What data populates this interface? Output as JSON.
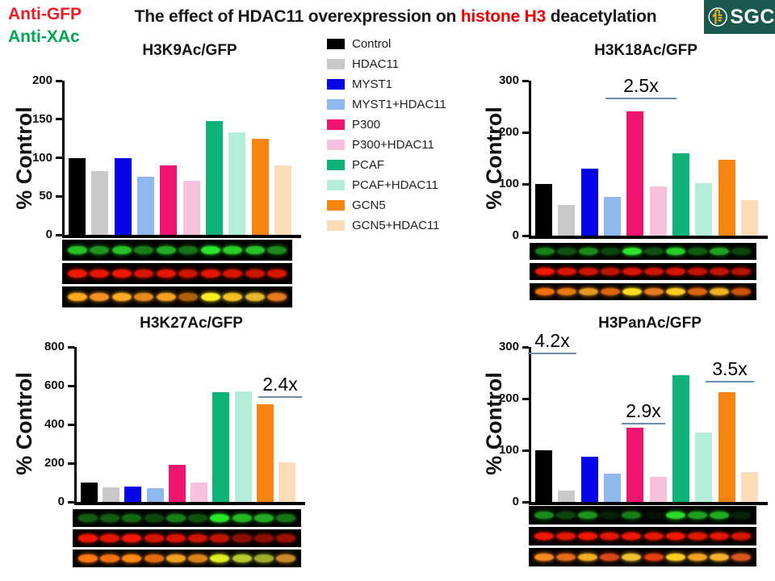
{
  "header": {
    "corner_labels": [
      {
        "text": "Anti-GFP",
        "color": "#ed1c24"
      },
      {
        "text": "Anti-XAc",
        "color": "#00a651"
      }
    ],
    "title": {
      "prefix": "The effect of HDAC11 overexpression on ",
      "highlight": "histone H3",
      "suffix": " deacetylation",
      "highlight_color": "#f00000"
    },
    "logo_text": "SGC"
  },
  "legend": {
    "entries": [
      {
        "label": "Control",
        "color": "#000000"
      },
      {
        "label": "HDAC11",
        "color": "#c9c9c9"
      },
      {
        "label": "MYST1",
        "color": "#0505e8"
      },
      {
        "label": "MYST1+HDAC11",
        "color": "#8fb8ef"
      },
      {
        "label": "P300",
        "color": "#ee1470"
      },
      {
        "label": "P300+HDAC11",
        "color": "#f9c2dc"
      },
      {
        "label": "PCAF",
        "color": "#0fb377"
      },
      {
        "label": "PCAF+HDAC11",
        "color": "#b4eeda"
      },
      {
        "label": "GCN5",
        "color": "#f8850f"
      },
      {
        "label": "GCN5+HDAC11",
        "color": "#fcdcb8"
      }
    ]
  },
  "chart_data": [
    {
      "type": "bar",
      "title": "H3K9Ac/GFP",
      "ylabel": "% Control",
      "ylim": [
        0,
        200
      ],
      "yticks": [
        0,
        50,
        100,
        150,
        200
      ],
      "categories": [
        "Control",
        "HDAC11",
        "MYST1",
        "MYST1+HDAC11",
        "P300",
        "P300+HDAC11",
        "PCAF",
        "PCAF+HDAC11",
        "GCN5",
        "GCN5+HDAC11"
      ],
      "values": [
        100,
        83,
        100,
        75,
        90,
        70,
        148,
        133,
        125,
        90
      ],
      "annotations": []
    },
    {
      "type": "bar",
      "title": "H3K18Ac/GFP",
      "ylabel": "% Control",
      "ylim": [
        0,
        300
      ],
      "yticks": [
        0,
        100,
        200,
        300
      ],
      "categories": [
        "Control",
        "HDAC11",
        "MYST1",
        "MYST1+HDAC11",
        "P300",
        "P300+HDAC11",
        "PCAF",
        "PCAF+HDAC11",
        "GCN5",
        "GCN5+HDAC11"
      ],
      "values": [
        100,
        60,
        130,
        75,
        240,
        95,
        160,
        102,
        147,
        68
      ],
      "annotations": [
        {
          "label": "2.5x",
          "bar": "P300"
        }
      ]
    },
    {
      "type": "bar",
      "title": "H3K27Ac/GFP",
      "ylabel": "% Control",
      "ylim": [
        0,
        800
      ],
      "yticks": [
        0,
        200,
        400,
        600,
        800
      ],
      "categories": [
        "Control",
        "HDAC11",
        "MYST1",
        "MYST1+HDAC11",
        "P300",
        "P300+HDAC11",
        "PCAF",
        "PCAF+HDAC11",
        "GCN5",
        "GCN5+HDAC11"
      ],
      "values": [
        100,
        75,
        80,
        70,
        190,
        100,
        565,
        570,
        505,
        205
      ],
      "annotations": [
        {
          "label": "2.4x",
          "bar": "GCN5"
        }
      ]
    },
    {
      "type": "bar",
      "title": "H3PanAc/GFP",
      "ylabel": "% Control",
      "ylim": [
        0,
        300
      ],
      "yticks": [
        0,
        100,
        200,
        300
      ],
      "categories": [
        "Control",
        "HDAC11",
        "MYST1",
        "MYST1+HDAC11",
        "P300",
        "P300+HDAC11",
        "PCAF",
        "PCAF+HDAC11",
        "GCN5",
        "GCN5+HDAC11"
      ],
      "values": [
        100,
        22,
        87,
        55,
        143,
        48,
        245,
        135,
        213,
        58
      ],
      "annotations": [
        {
          "label": "4.2x",
          "bar": "Control"
        },
        {
          "label": "2.9x",
          "bar": "P300"
        },
        {
          "label": "3.5x",
          "bar": "GCN5"
        }
      ]
    }
  ],
  "blots": [
    {
      "rows": [
        {
          "channel": "green",
          "color": "#2ce62c",
          "intensities": [
            0.85,
            0.65,
            0.85,
            0.55,
            0.75,
            0.5,
            1,
            0.9,
            0.85,
            0.6
          ]
        },
        {
          "channel": "red",
          "color": "#f01800",
          "intensities": [
            1,
            0.95,
            1,
            0.9,
            0.95,
            0.85,
            0.95,
            0.9,
            0.85,
            0.9
          ]
        },
        {
          "channel": "merge",
          "colors": [
            "#ffaa22",
            "#ff9922",
            "#ffaa22",
            "#ff9922",
            "#ffaa22",
            "#dd7711",
            "#ffee22",
            "#ffcc22",
            "#ffcc33",
            "#ff8822"
          ],
          "intensities": [
            1,
            0.95,
            1,
            0.9,
            0.95,
            0.8,
            1,
            0.95,
            0.9,
            0.9
          ]
        }
      ]
    },
    {
      "rows": [
        {
          "channel": "green",
          "color": "#2ce62c",
          "intensities": [
            0.55,
            0.35,
            0.6,
            0.3,
            1,
            0.35,
            0.9,
            0.4,
            0.7,
            0.3
          ]
        },
        {
          "channel": "red",
          "color": "#f01800",
          "intensities": [
            1,
            0.9,
            0.85,
            0.8,
            0.9,
            0.85,
            0.9,
            0.8,
            0.8,
            0.75
          ]
        },
        {
          "channel": "merge",
          "colors": [
            "#ff7711",
            "#ff8811",
            "#ffaa22",
            "#ff7711",
            "#ffdd22",
            "#ff8822",
            "#ffcc22",
            "#ff7711",
            "#ffbb22",
            "#ff6611"
          ],
          "intensities": [
            0.95,
            0.9,
            0.9,
            0.85,
            1,
            0.9,
            1,
            0.85,
            0.95,
            0.8
          ]
        }
      ]
    },
    {
      "rows": [
        {
          "channel": "green",
          "color": "#2ce62c",
          "intensities": [
            0.4,
            0.4,
            0.45,
            0.3,
            0.55,
            0.35,
            1,
            0.8,
            0.75,
            0.5
          ]
        },
        {
          "channel": "red",
          "color": "#f01800",
          "intensities": [
            1,
            0.95,
            1,
            0.9,
            0.9,
            0.85,
            0.8,
            0.6,
            0.6,
            0.65
          ]
        },
        {
          "channel": "merge",
          "colors": [
            "#ff7711",
            "#ff7711",
            "#ff8811",
            "#ff7711",
            "#ffaa22",
            "#ff9922",
            "#ddee22",
            "#ccdd33",
            "#bbcc33",
            "#ffaa33"
          ],
          "intensities": [
            1,
            0.95,
            1,
            0.9,
            0.95,
            0.85,
            1,
            0.9,
            0.85,
            0.8
          ]
        }
      ]
    },
    {
      "rows": [
        {
          "channel": "green",
          "color": "#2ce62c",
          "intensities": [
            0.6,
            0.3,
            0.65,
            0.15,
            0.55,
            0.08,
            0.95,
            0.7,
            0.75,
            0.15
          ]
        },
        {
          "channel": "red",
          "color": "#f01800",
          "intensities": [
            1,
            0.95,
            1,
            0.95,
            1,
            0.95,
            1,
            0.95,
            0.95,
            0.9
          ]
        },
        {
          "channel": "merge",
          "colors": [
            "#ff8822",
            "#ff7722",
            "#ffbb22",
            "#ff5522",
            "#ffcc33",
            "#ff4411",
            "#ffcc22",
            "#ffaa22",
            "#ffbb33",
            "#ff6622"
          ],
          "intensities": [
            1,
            0.9,
            0.95,
            0.85,
            0.95,
            0.9,
            1,
            0.95,
            0.95,
            0.85
          ]
        }
      ]
    }
  ]
}
